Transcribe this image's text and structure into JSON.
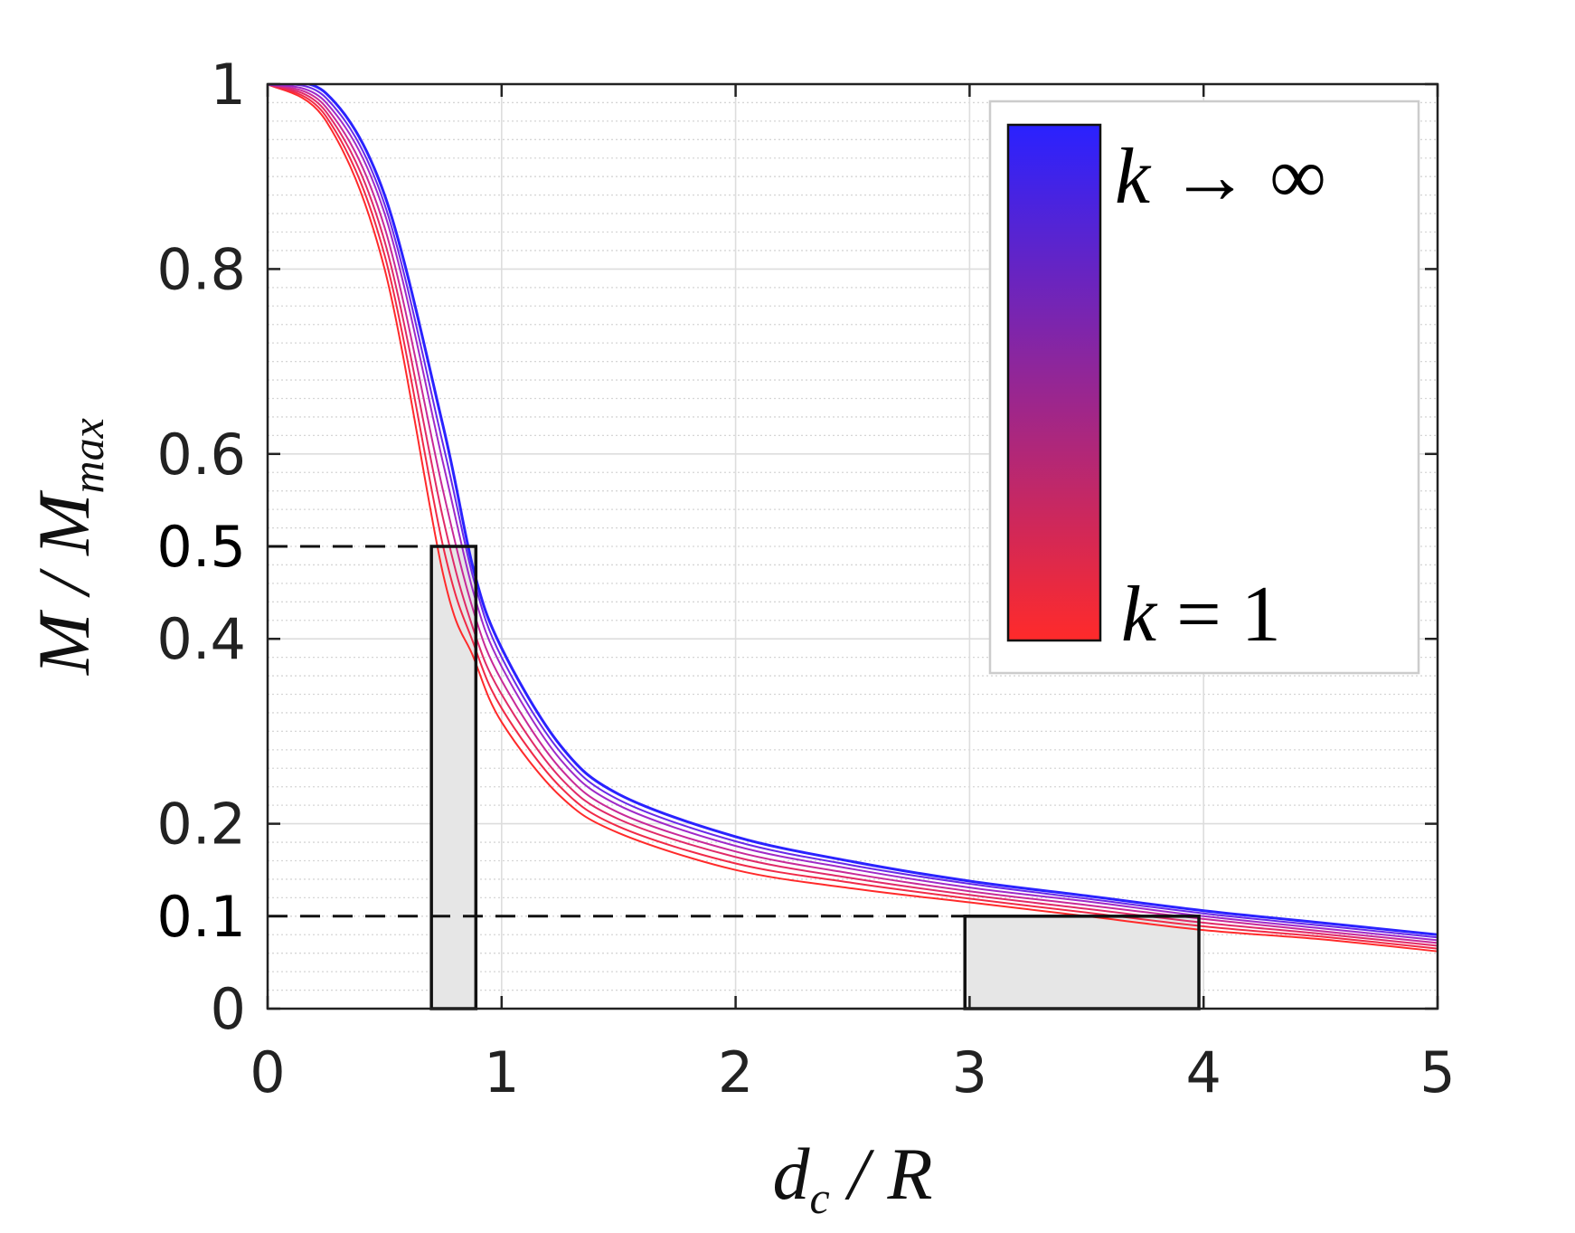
{
  "chart_data": {
    "type": "line",
    "xlim": [
      0,
      5
    ],
    "ylim": [
      0,
      1
    ],
    "x_ticks": [
      "0",
      "1",
      "2",
      "3",
      "4",
      "5"
    ],
    "y_ticks": [
      "0",
      "0.2",
      "0.4",
      "0.6",
      "0.8",
      "1"
    ],
    "y_extra_ticks": [
      "0.1",
      "0.5"
    ],
    "xlabel": {
      "main": "d",
      "sub": "c",
      "rest": " / R"
    },
    "ylabel": {
      "main": "M / M",
      "sub": "max"
    },
    "grid": true,
    "legend_placement": "top-right",
    "colorbar": {
      "top_label": {
        "var": "k",
        "rest": " → ∞"
      },
      "bottom_label": {
        "var": "k",
        "rest": " = 1"
      },
      "color_top": "#2a22ff",
      "color_bottom": "#ff2a2a"
    },
    "series": [
      {
        "color": "#ff2a2a",
        "x": [
          0,
          0.25,
          0.5,
          0.75,
          0.88,
          1.0,
          1.25,
          1.5,
          2.0,
          2.5,
          3.0,
          3.5,
          4.0,
          4.5,
          5.0
        ],
        "y": [
          1.0,
          0.96,
          0.8,
          0.47,
          0.38,
          0.31,
          0.23,
          0.19,
          0.15,
          0.13,
          0.115,
          0.1,
          0.085,
          0.075,
          0.062
        ]
      },
      {
        "color": "#f02a48",
        "x": [
          0,
          0.25,
          0.5,
          0.75,
          0.88,
          1.0,
          1.25,
          1.5,
          2.0,
          2.5,
          3.0,
          3.5,
          4.0,
          4.5,
          5.0
        ],
        "y": [
          1.0,
          0.965,
          0.815,
          0.5,
          0.395,
          0.325,
          0.24,
          0.197,
          0.157,
          0.136,
          0.119,
          0.104,
          0.089,
          0.078,
          0.065
        ]
      },
      {
        "color": "#e02a68",
        "x": [
          0,
          0.25,
          0.5,
          0.75,
          0.88,
          1.0,
          1.25,
          1.5,
          2.0,
          2.5,
          3.0,
          3.5,
          4.0,
          4.5,
          5.0
        ],
        "y": [
          1.0,
          0.97,
          0.83,
          0.53,
          0.41,
          0.34,
          0.25,
          0.205,
          0.164,
          0.141,
          0.123,
          0.108,
          0.093,
          0.081,
          0.068
        ]
      },
      {
        "color": "#c82a98",
        "x": [
          0,
          0.25,
          0.5,
          0.75,
          0.88,
          1.0,
          1.25,
          1.5,
          2.0,
          2.5,
          3.0,
          3.5,
          4.0,
          4.5,
          5.0
        ],
        "y": [
          1.0,
          0.975,
          0.845,
          0.56,
          0.43,
          0.355,
          0.26,
          0.212,
          0.17,
          0.146,
          0.127,
          0.112,
          0.097,
          0.084,
          0.071
        ]
      },
      {
        "color": "#a02ac8",
        "x": [
          0,
          0.25,
          0.5,
          0.75,
          0.88,
          1.0,
          1.25,
          1.5,
          2.0,
          2.5,
          3.0,
          3.5,
          4.0,
          4.5,
          5.0
        ],
        "y": [
          1.0,
          0.98,
          0.86,
          0.59,
          0.45,
          0.37,
          0.27,
          0.22,
          0.176,
          0.151,
          0.131,
          0.116,
          0.1,
          0.087,
          0.074
        ]
      },
      {
        "color": "#6a2ae8",
        "x": [
          0,
          0.25,
          0.5,
          0.75,
          0.88,
          1.0,
          1.25,
          1.5,
          2.0,
          2.5,
          3.0,
          3.5,
          4.0,
          4.5,
          5.0
        ],
        "y": [
          1.0,
          0.985,
          0.87,
          0.61,
          0.465,
          0.38,
          0.278,
          0.226,
          0.181,
          0.155,
          0.135,
          0.119,
          0.103,
          0.09,
          0.077
        ]
      },
      {
        "color": "#2a22ff",
        "x": [
          0,
          0.25,
          0.5,
          0.75,
          0.88,
          1.0,
          1.25,
          1.5,
          2.0,
          2.5,
          3.0,
          3.5,
          4.0,
          4.5,
          5.0
        ],
        "y": [
          1.0,
          0.99,
          0.88,
          0.63,
          0.475,
          0.39,
          0.285,
          0.232,
          0.186,
          0.159,
          0.138,
          0.122,
          0.106,
          0.093,
          0.08
        ]
      }
    ],
    "reference_lines": [
      {
        "y": 0.5,
        "x_from": 0,
        "x_to": 0.88,
        "style": "dashed"
      },
      {
        "y": 0.1,
        "x_from": 0,
        "x_to": 3.0,
        "style": "dashed"
      }
    ],
    "shaded_regions": [
      {
        "x_from": 0.7,
        "x_to": 0.89,
        "y_from": 0,
        "y_to": 0.5,
        "fill": "#e6e6e6"
      },
      {
        "x_from": 2.98,
        "x_to": 3.98,
        "y_from": 0,
        "y_to": 0.1,
        "fill": "#e6e6e6"
      }
    ]
  }
}
